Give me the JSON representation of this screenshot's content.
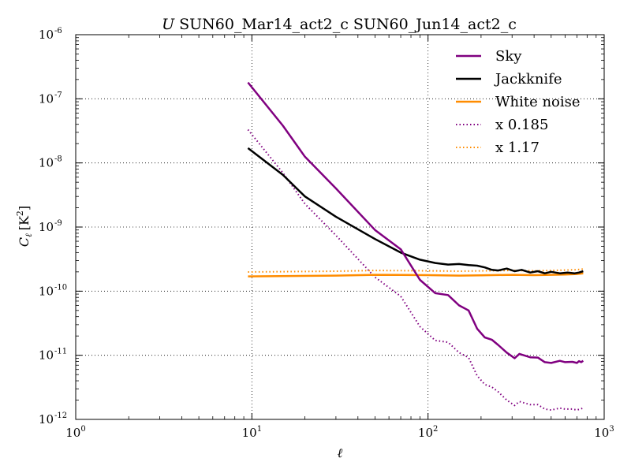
{
  "chart_data": {
    "type": "line",
    "title_var": "U",
    "title": "SUN60_Mar14_act2_c SUN60_Jun14_act2_c",
    "xlabel": "ℓ",
    "ylabel_main": "C",
    "ylabel_sub": "ℓ",
    "ylabel_unit": "[K",
    "ylabel_unit_sup": "2",
    "ylabel_unit_end": "]",
    "xscale": "log",
    "yscale": "log",
    "xlim": [
      1,
      1000
    ],
    "ylim": [
      1e-12,
      1e-06
    ],
    "grid": true,
    "legend_position": "top-right",
    "x_ticks": [
      {
        "value": 1,
        "base": "10",
        "exp": "0"
      },
      {
        "value": 10,
        "base": "10",
        "exp": "1"
      },
      {
        "value": 100,
        "base": "10",
        "exp": "2"
      },
      {
        "value": 1000,
        "base": "10",
        "exp": "3"
      }
    ],
    "y_ticks": [
      {
        "value": 1e-12,
        "base": "10",
        "exp": "-12"
      },
      {
        "value": 1e-11,
        "base": "10",
        "exp": "-11"
      },
      {
        "value": 1e-10,
        "base": "10",
        "exp": "-10"
      },
      {
        "value": 1e-09,
        "base": "10",
        "exp": "-9"
      },
      {
        "value": 1e-08,
        "base": "10",
        "exp": "-8"
      },
      {
        "value": 1e-07,
        "base": "10",
        "exp": "-7"
      },
      {
        "value": 1e-06,
        "base": "10",
        "exp": "-6"
      }
    ],
    "series": [
      {
        "name": "Sky",
        "color": "#800080",
        "style": "solid",
        "points": [
          [
            9.5,
            1.8e-07
          ],
          [
            15,
            3.8e-08
          ],
          [
            20,
            1.25e-08
          ],
          [
            30,
            4e-09
          ],
          [
            50,
            9e-10
          ],
          [
            70,
            4.5e-10
          ],
          [
            90,
            1.5e-10
          ],
          [
            110,
            9.3e-11
          ],
          [
            130,
            8.7e-11
          ],
          [
            150,
            6e-11
          ],
          [
            170,
            5e-11
          ],
          [
            190,
            2.6e-11
          ],
          [
            210,
            1.9e-11
          ],
          [
            230,
            1.75e-11
          ],
          [
            250,
            1.45e-11
          ],
          [
            280,
            1.1e-11
          ],
          [
            310,
            9e-12
          ],
          [
            330,
            1.05e-11
          ],
          [
            380,
            9.3e-12
          ],
          [
            420,
            9.2e-12
          ],
          [
            460,
            7.8e-12
          ],
          [
            500,
            7.6e-12
          ],
          [
            560,
            8.2e-12
          ],
          [
            600,
            7.8e-12
          ],
          [
            660,
            7.9e-12
          ],
          [
            700,
            7.6e-12
          ],
          [
            720,
            8.1e-12
          ],
          [
            740,
            7.8e-12
          ],
          [
            760,
            8.2e-12
          ]
        ]
      },
      {
        "name": "Jackknife",
        "color": "#000000",
        "style": "solid",
        "points": [
          [
            9.5,
            1.7e-08
          ],
          [
            15,
            6.5e-09
          ],
          [
            20,
            3e-09
          ],
          [
            30,
            1.45e-09
          ],
          [
            50,
            6.5e-10
          ],
          [
            70,
            4e-10
          ],
          [
            90,
            3.1e-10
          ],
          [
            110,
            2.75e-10
          ],
          [
            130,
            2.6e-10
          ],
          [
            150,
            2.65e-10
          ],
          [
            170,
            2.55e-10
          ],
          [
            190,
            2.5e-10
          ],
          [
            210,
            2.35e-10
          ],
          [
            230,
            2.15e-10
          ],
          [
            250,
            2.1e-10
          ],
          [
            280,
            2.25e-10
          ],
          [
            310,
            2.05e-10
          ],
          [
            340,
            2.15e-10
          ],
          [
            380,
            1.95e-10
          ],
          [
            420,
            2.05e-10
          ],
          [
            460,
            1.9e-10
          ],
          [
            500,
            2e-10
          ],
          [
            560,
            1.9e-10
          ],
          [
            620,
            1.95e-10
          ],
          [
            680,
            1.9e-10
          ],
          [
            720,
            1.95e-10
          ],
          [
            760,
            2.05e-10
          ]
        ]
      },
      {
        "name": "White noise",
        "color": "#ff8c00",
        "style": "solid",
        "points": [
          [
            9.5,
            1.7e-10
          ],
          [
            30,
            1.75e-10
          ],
          [
            50,
            1.8e-10
          ],
          [
            100,
            1.78e-10
          ],
          [
            150,
            1.75e-10
          ],
          [
            200,
            1.77e-10
          ],
          [
            300,
            1.8e-10
          ],
          [
            400,
            1.78e-10
          ],
          [
            500,
            1.8e-10
          ],
          [
            600,
            1.82e-10
          ],
          [
            700,
            1.85e-10
          ],
          [
            760,
            1.9e-10
          ]
        ]
      },
      {
        "name": "x 0.185",
        "color": "#800080",
        "style": "dotted",
        "points": [
          [
            9.5,
            3.3e-08
          ],
          [
            15,
            7e-09
          ],
          [
            20,
            2.3e-09
          ],
          [
            30,
            7.4e-10
          ],
          [
            50,
            1.65e-10
          ],
          [
            70,
            8.3e-11
          ],
          [
            90,
            2.8e-11
          ],
          [
            110,
            1.7e-11
          ],
          [
            130,
            1.6e-11
          ],
          [
            150,
            1.1e-11
          ],
          [
            170,
            9.2e-12
          ],
          [
            190,
            4.8e-12
          ],
          [
            210,
            3.5e-12
          ],
          [
            230,
            3.2e-12
          ],
          [
            250,
            2.7e-12
          ],
          [
            280,
            2e-12
          ],
          [
            310,
            1.65e-12
          ],
          [
            330,
            1.9e-12
          ],
          [
            380,
            1.7e-12
          ],
          [
            420,
            1.7e-12
          ],
          [
            460,
            1.45e-12
          ],
          [
            500,
            1.4e-12
          ],
          [
            560,
            1.5e-12
          ],
          [
            600,
            1.45e-12
          ],
          [
            660,
            1.45e-12
          ],
          [
            700,
            1.4e-12
          ],
          [
            760,
            1.5e-12
          ]
        ]
      },
      {
        "name": "x 1.17",
        "color": "#ff8c00",
        "style": "dotted",
        "points": [
          [
            9.5,
            1.99e-10
          ],
          [
            30,
            2.05e-10
          ],
          [
            50,
            2.1e-10
          ],
          [
            100,
            2.08e-10
          ],
          [
            150,
            2.05e-10
          ],
          [
            200,
            2.07e-10
          ],
          [
            300,
            2.1e-10
          ],
          [
            400,
            2.08e-10
          ],
          [
            500,
            2.1e-10
          ],
          [
            600,
            2.13e-10
          ],
          [
            700,
            2.16e-10
          ],
          [
            760,
            2.22e-10
          ]
        ]
      }
    ]
  }
}
